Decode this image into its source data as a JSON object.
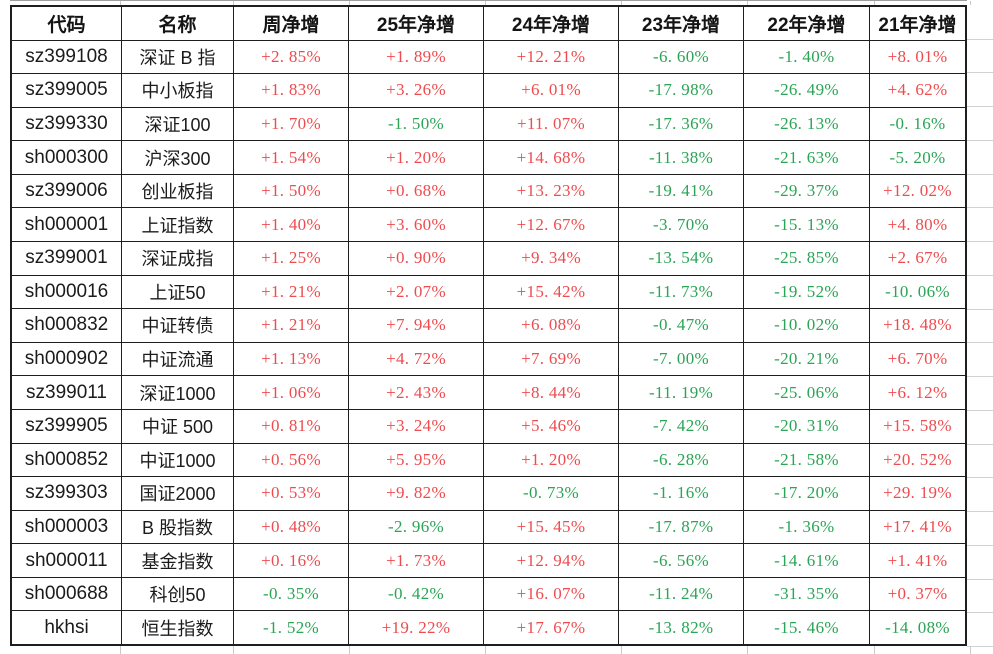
{
  "colors": {
    "positive": "#ee4b4e",
    "negative": "#2aa455",
    "grid": "#1e1e1e",
    "ghost_grid": "#c9c9c9"
  },
  "table": {
    "columns": [
      "代码",
      "名称",
      "周净增",
      "25年净增",
      "24年净增",
      "23年净增",
      "22年净增",
      "21年净增"
    ],
    "rows": [
      {
        "code": "sz399108",
        "name": "深证 B 指",
        "values": [
          "+2. 85%",
          "+1. 89%",
          "+12. 21%",
          "-6. 60%",
          "-1. 40%",
          "+8. 01%"
        ]
      },
      {
        "code": "sz399005",
        "name": "中小板指",
        "values": [
          "+1. 83%",
          "+3. 26%",
          "+6. 01%",
          "-17. 98%",
          "-26. 49%",
          "+4. 62%"
        ]
      },
      {
        "code": "sz399330",
        "name": "深证100",
        "values": [
          "+1. 70%",
          "-1. 50%",
          "+11. 07%",
          "-17. 36%",
          "-26. 13%",
          "-0. 16%"
        ]
      },
      {
        "code": "sh000300",
        "name": "沪深300",
        "values": [
          "+1. 54%",
          "+1. 20%",
          "+14. 68%",
          "-11. 38%",
          "-21. 63%",
          "-5. 20%"
        ]
      },
      {
        "code": "sz399006",
        "name": "创业板指",
        "values": [
          "+1. 50%",
          "+0. 68%",
          "+13. 23%",
          "-19. 41%",
          "-29. 37%",
          "+12. 02%"
        ]
      },
      {
        "code": "sh000001",
        "name": "上证指数",
        "values": [
          "+1. 40%",
          "+3. 60%",
          "+12. 67%",
          "-3. 70%",
          "-15. 13%",
          "+4. 80%"
        ]
      },
      {
        "code": "sz399001",
        "name": "深证成指",
        "values": [
          "+1. 25%",
          "+0. 90%",
          "+9. 34%",
          "-13. 54%",
          "-25. 85%",
          "+2. 67%"
        ]
      },
      {
        "code": "sh000016",
        "name": "上证50",
        "values": [
          "+1. 21%",
          "+2. 07%",
          "+15. 42%",
          "-11. 73%",
          "-19. 52%",
          "-10. 06%"
        ]
      },
      {
        "code": "sh000832",
        "name": "中证转债",
        "values": [
          "+1. 21%",
          "+7. 94%",
          "+6. 08%",
          "-0. 47%",
          "-10. 02%",
          "+18. 48%"
        ]
      },
      {
        "code": "sh000902",
        "name": "中证流通",
        "values": [
          "+1. 13%",
          "+4. 72%",
          "+7. 69%",
          "-7. 00%",
          "-20. 21%",
          "+6. 70%"
        ]
      },
      {
        "code": "sz399011",
        "name": "深证1000",
        "values": [
          "+1. 06%",
          "+2. 43%",
          "+8. 44%",
          "-11. 19%",
          "-25. 06%",
          "+6. 12%"
        ]
      },
      {
        "code": "sz399905",
        "name": "中证 500",
        "values": [
          "+0. 81%",
          "+3. 24%",
          "+5. 46%",
          "-7. 42%",
          "-20. 31%",
          "+15. 58%"
        ]
      },
      {
        "code": "sh000852",
        "name": "中证1000",
        "values": [
          "+0. 56%",
          "+5. 95%",
          "+1. 20%",
          "-6. 28%",
          "-21. 58%",
          "+20. 52%"
        ]
      },
      {
        "code": "sz399303",
        "name": "国证2000",
        "values": [
          "+0. 53%",
          "+9. 82%",
          "-0. 73%",
          "-1. 16%",
          "-17. 20%",
          "+29. 19%"
        ]
      },
      {
        "code": "sh000003",
        "name": "B 股指数",
        "values": [
          "+0. 48%",
          "-2. 96%",
          "+15. 45%",
          "-17. 87%",
          "-1. 36%",
          "+17. 41%"
        ]
      },
      {
        "code": "sh000011",
        "name": "基金指数",
        "values": [
          "+0. 16%",
          "+1. 73%",
          "+12. 94%",
          "-6. 56%",
          "-14. 61%",
          "+1. 41%"
        ]
      },
      {
        "code": "sh000688",
        "name": "科创50",
        "values": [
          "-0. 35%",
          "-0. 42%",
          "+16. 07%",
          "-11. 24%",
          "-31. 35%",
          "+0. 37%"
        ]
      },
      {
        "code": "hkhsi",
        "name": "恒生指数",
        "values": [
          "-1. 52%",
          "+19. 22%",
          "+17. 67%",
          "-13. 82%",
          "-15. 46%",
          "-14. 08%"
        ]
      }
    ]
  }
}
